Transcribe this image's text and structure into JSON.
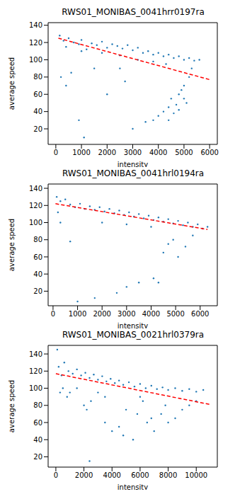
{
  "chart_data": [
    {
      "type": "scatter",
      "title": "RWS01_MONIBAS_0041hrr0197ra",
      "x_label": "intensity",
      "y_label": "average speed",
      "xlim": [
        -300,
        6300
      ],
      "ylim": [
        2,
        143
      ],
      "xticks": [
        0,
        1000,
        2000,
        3000,
        4000,
        5000,
        6000
      ],
      "yticks": [
        20,
        40,
        60,
        80,
        100,
        120,
        140
      ],
      "series": [
        {
          "type": "scatter",
          "color": "#1f77b4",
          "marker": "dot",
          "x": [
            150,
            300,
            400,
            500,
            700,
            900,
            1000,
            1200,
            1400,
            1600,
            1800,
            2000,
            2200,
            2400,
            2600,
            2800,
            3000,
            3200,
            3400,
            3600,
            3800,
            4000,
            4200,
            4400,
            4600,
            4800,
            5000,
            5200,
            5400,
            5600,
            1000,
            1800,
            2500,
            3200,
            3800,
            4300,
            200,
            400,
            600,
            900,
            1100,
            1500,
            2000,
            2500,
            3000,
            2700,
            3500,
            3800,
            4000,
            4200,
            4400,
            4500,
            4600,
            4700,
            4800,
            4900,
            5000,
            5100,
            5200,
            5300,
            4400,
            4800,
            5000
          ],
          "y": [
            128,
            122,
            115,
            125,
            120,
            118,
            123,
            112,
            119,
            117,
            121,
            114,
            118,
            116,
            113,
            117,
            111,
            114,
            108,
            110,
            106,
            108,
            104,
            106,
            102,
            104,
            100,
            102,
            99,
            100,
            110,
            108,
            105,
            100,
            98,
            95,
            80,
            70,
            85,
            30,
            10,
            90,
            60,
            90,
            20,
            75,
            28,
            30,
            35,
            40,
            45,
            55,
            38,
            48,
            60,
            65,
            70,
            50,
            80,
            90,
            30,
            42,
            55
          ]
        },
        {
          "type": "line",
          "color": "red",
          "line_style": "dashed",
          "x": [
            100,
            6000
          ],
          "y": [
            125,
            77
          ]
        }
      ]
    },
    {
      "type": "scatter",
      "title": "RWS01_MONIBAS_0041hrl0194ra",
      "x_label": "intensity",
      "y_label": "average speed",
      "xlim": [
        -200,
        6700
      ],
      "ylim": [
        3,
        145
      ],
      "xticks": [
        0,
        1000,
        2000,
        3000,
        4000,
        5000,
        6000
      ],
      "yticks": [
        20,
        40,
        60,
        80,
        100,
        120,
        140
      ],
      "series": [
        {
          "type": "scatter",
          "color": "#1f77b4",
          "marker": "dot",
          "x": [
            150,
            200,
            300,
            500,
            700,
            900,
            1100,
            1300,
            1500,
            1700,
            1900,
            2100,
            2300,
            2500,
            2700,
            2900,
            3100,
            3300,
            3500,
            3700,
            3900,
            4100,
            4300,
            4500,
            4700,
            4900,
            5100,
            5300,
            5500,
            5700,
            5900,
            6100,
            6300,
            300,
            700,
            1000,
            1700,
            2600,
            3000,
            3500,
            4100,
            4300,
            4500,
            4700,
            4900,
            5100,
            5400,
            5700,
            4000,
            3000,
            2000
          ],
          "y": [
            130,
            112,
            125,
            127,
            121,
            118,
            122,
            116,
            119,
            115,
            118,
            113,
            116,
            111,
            114,
            109,
            112,
            107,
            110,
            105,
            108,
            103,
            106,
            101,
            104,
            99,
            102,
            97,
            100,
            95,
            98,
            93,
            95,
            100,
            78,
            8,
            12,
            18,
            25,
            30,
            35,
            30,
            65,
            75,
            80,
            60,
            72,
            85,
            95,
            98,
            100
          ]
        },
        {
          "type": "line",
          "color": "red",
          "line_style": "dashed",
          "x": [
            100,
            6300
          ],
          "y": [
            122,
            92
          ]
        }
      ]
    },
    {
      "type": "scatter",
      "title": "RWS01_MONIBAS_0021hrl0379ra",
      "x_label": "intensity",
      "y_label": "average speed",
      "xlim": [
        -550,
        11500
      ],
      "ylim": [
        8,
        150
      ],
      "xticks": [
        0,
        2000,
        4000,
        6000,
        8000,
        10000
      ],
      "yticks": [
        20,
        40,
        60,
        80,
        100,
        120,
        140
      ],
      "series": [
        {
          "type": "scatter",
          "color": "#1f77b4",
          "marker": "dot",
          "x": [
            100,
            200,
            400,
            600,
            900,
            1200,
            1500,
            1800,
            2100,
            2400,
            2700,
            3000,
            3300,
            3600,
            3900,
            4200,
            4500,
            4800,
            5200,
            5600,
            6000,
            6400,
            6800,
            7200,
            7600,
            8000,
            8500,
            9000,
            9500,
            10000,
            10500,
            300,
            800,
            1500,
            2000,
            2200,
            2500,
            2400,
            3000,
            3500,
            4000,
            4500,
            5000,
            5500,
            5800,
            6200,
            6500,
            6800,
            7000,
            7500,
            8000,
            8500,
            9000,
            9500,
            10000,
            6000,
            7800,
            4800,
            3500,
            1000,
            500
          ],
          "y": [
            145,
            125,
            115,
            130,
            120,
            117,
            122,
            115,
            118,
            112,
            116,
            110,
            114,
            108,
            111,
            106,
            109,
            104,
            107,
            102,
            105,
            100,
            103,
            99,
            101,
            98,
            100,
            97,
            99,
            96,
            98,
            95,
            90,
            100,
            80,
            75,
            85,
            15,
            95,
            90,
            50,
            55,
            75,
            40,
            70,
            85,
            60,
            65,
            50,
            70,
            60,
            65,
            75,
            80,
            85,
            90,
            80,
            45,
            60,
            95,
            100
          ]
        },
        {
          "type": "line",
          "color": "red",
          "line_style": "dashed",
          "x": [
            0,
            11000
          ],
          "y": [
            117,
            81
          ]
        }
      ]
    }
  ]
}
